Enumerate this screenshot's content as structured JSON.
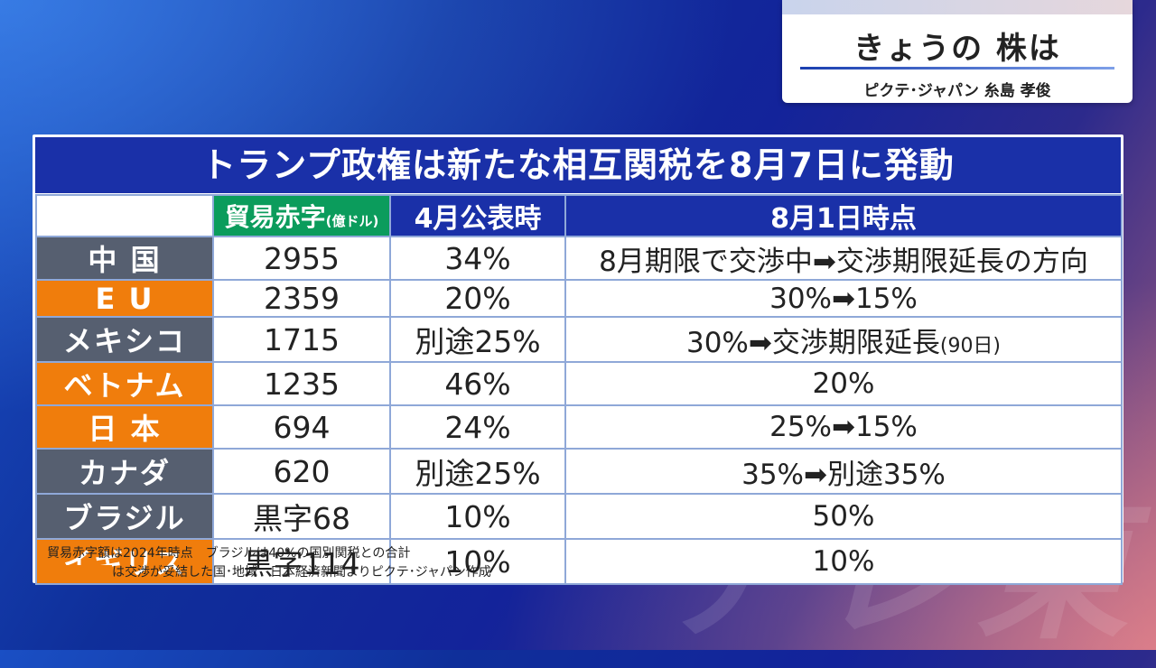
{
  "title_card": {
    "title": "きょうの 株は",
    "speaker": "ピクテ･ジャパン 糸島 孝俊"
  },
  "panel": {
    "heading": "トランプ政権は新たな相互関税を8月7日に発動",
    "columns": {
      "deficit": "貿易赤字",
      "deficit_unit": "(億ドル)",
      "april": "4月公表時",
      "august": "8月1日時点"
    },
    "rows": [
      {
        "country": "中 国",
        "deficit": "2955",
        "april": "34%",
        "august": "8月期限で交渉中➡交渉期限延長の方向",
        "august_note": ""
      },
      {
        "country": "E U",
        "deficit": "2359",
        "april": "20%",
        "august": "30%➡15%",
        "august_note": ""
      },
      {
        "country": "メキシコ",
        "deficit": "1715",
        "april": "別途25%",
        "august": "30%➡交渉期限延長",
        "august_note": "(90日)"
      },
      {
        "country": "ベトナム",
        "deficit": "1235",
        "april": "46%",
        "august": "20%",
        "august_note": ""
      },
      {
        "country": "日 本",
        "deficit": "694",
        "april": "24%",
        "august": "25%➡15%",
        "august_note": ""
      },
      {
        "country": "カナダ",
        "deficit": "620",
        "april": "別途25%",
        "august": "35%➡別途35%",
        "august_note": ""
      },
      {
        "country": "ブラジル",
        "deficit": "黒字68",
        "april": "10%",
        "august": "50%",
        "august_note": ""
      },
      {
        "country": "イギリス",
        "deficit": "黒字114",
        "april": "10%",
        "august": "10%",
        "august_note": ""
      }
    ],
    "notes": {
      "line1": "貿易赤字額は2024年時点　ブラジルは40%の国別関税との合計",
      "line2": "は交渉が妥結した国･地域　日本経済新聞よりピクテ･ジャパン作成"
    }
  },
  "colors": {
    "header_navy": "#1a30a8",
    "deficit_green": "#0b9c5c",
    "agreed_orange": "#f07d0c",
    "pending_gray": "#565f70"
  }
}
